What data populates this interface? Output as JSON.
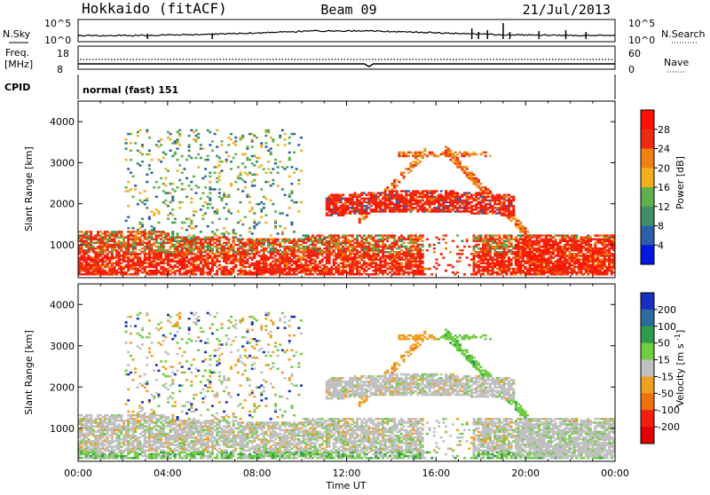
{
  "header": {
    "station": "Hokkaido (fitACF)",
    "beam": "Beam 09",
    "date": "21/Jul/2013"
  },
  "sky_panel": {
    "left_label": "N.Sky",
    "right_label": "N.Search",
    "left_ticks": [
      "10^5",
      "10^0"
    ],
    "right_ticks": [
      "10^5",
      "10^0"
    ]
  },
  "freq_panel": {
    "left_label_1": "Freq.",
    "left_label_2": "[MHz]",
    "right_label": "Nave",
    "left_ticks": [
      "18",
      "8"
    ],
    "right_ticks": [
      "60",
      "0"
    ]
  },
  "cpid": {
    "label": "CPID",
    "value": "normal (fast) 151"
  },
  "chart_data": [
    {
      "type": "heatmap",
      "name": "power",
      "ylabel": "Slant Range [km]",
      "xlabel": "Time UT",
      "x_ticks": [
        "00:00",
        "04:00",
        "08:00",
        "12:00",
        "16:00",
        "20:00",
        "00:00"
      ],
      "x_range_hours": [
        0,
        24
      ],
      "y_ticks": [
        "1000",
        "2000",
        "3000",
        "4000"
      ],
      "ylim": [
        200,
        4500
      ],
      "colorbar_label": "Power [dB]",
      "colorbar_ticks": [
        "4",
        "8",
        "12",
        "16",
        "20",
        "24",
        "28"
      ],
      "colorbar_colors": [
        "#0018e0",
        "#2d5fa8",
        "#3f8f6a",
        "#5fb04a",
        "#f0b020",
        "#f08010",
        "#f02a10",
        "#ff1000"
      ]
    },
    {
      "type": "heatmap",
      "name": "velocity",
      "ylabel": "Slant Range [km]",
      "xlabel": "Time UT",
      "x_ticks": [
        "00:00",
        "04:00",
        "08:00",
        "12:00",
        "16:00",
        "20:00",
        "00:00"
      ],
      "x_range_hours": [
        0,
        24
      ],
      "y_ticks": [
        "1000",
        "2000",
        "3000",
        "4000"
      ],
      "ylim": [
        200,
        4500
      ],
      "colorbar_label": "Velocity [m s^-1]",
      "colorbar_ticks": [
        "200",
        "100",
        "50",
        "15",
        "-15",
        "-50",
        "-100",
        "-200"
      ],
      "colorbar_colors": [
        "#1830c0",
        "#2d6aa0",
        "#2f9a4a",
        "#70cc40",
        "#c0c0c0",
        "#f0a020",
        "#f07010",
        "#f02010",
        "#e00000"
      ]
    }
  ],
  "colors": {
    "ground_scatter": "#c0c0c0",
    "trace": "#000000"
  }
}
